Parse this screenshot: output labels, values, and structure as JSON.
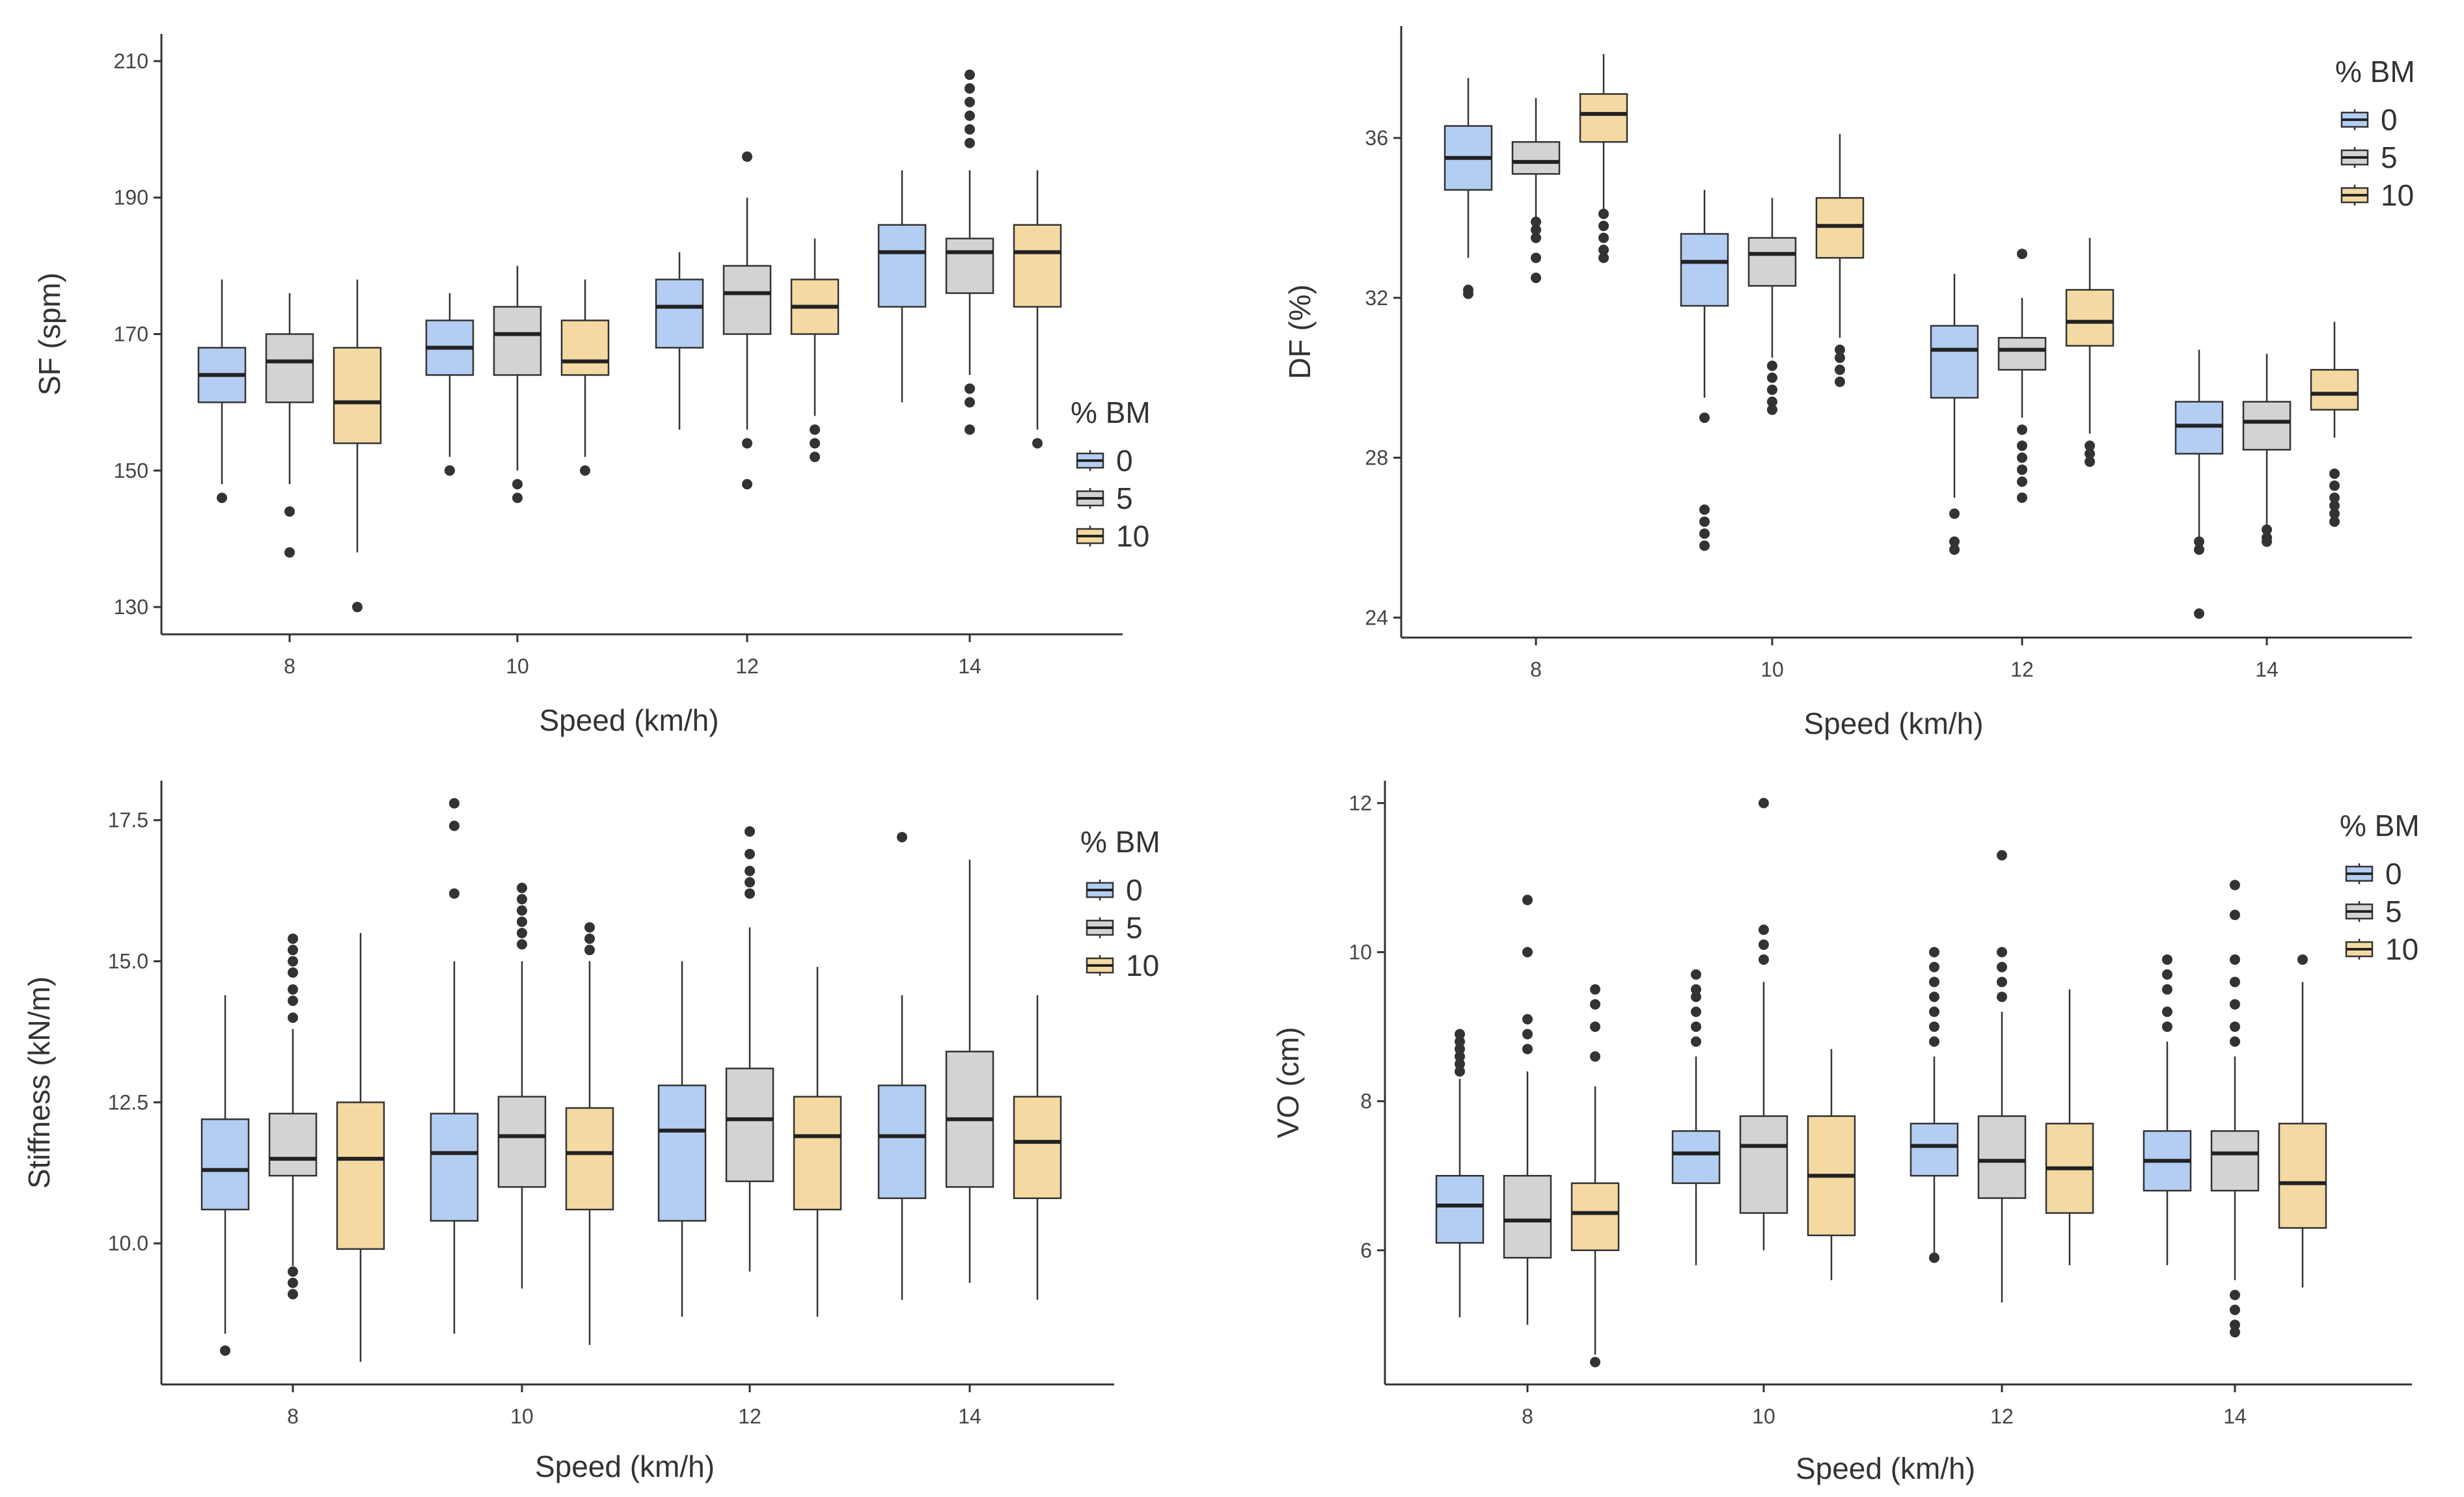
{
  "colors": {
    "0": "#b4cdf2",
    "5": "#d3d3d3",
    "10": "#f4d9a2"
  },
  "chart_data": [
    {
      "type": "boxplot",
      "xlabel": "Speed (km/h)",
      "ylabel": "SF (spm)",
      "ylim": [
        126,
        214
      ],
      "yticks": [
        130,
        150,
        170,
        190,
        210
      ],
      "yticklabels": [
        "130",
        "150",
        "170",
        "190",
        "210"
      ],
      "categories": [
        "8",
        "10",
        "12",
        "14"
      ],
      "legend": {
        "title": "% BM",
        "labels": [
          "0",
          "5",
          "10"
        ]
      },
      "series": [
        {
          "name": "0",
          "boxes": [
            {
              "whislo": 148,
              "q1": 160,
              "med": 164,
              "q3": 168,
              "whishi": 178,
              "fliers": [
                146
              ]
            },
            {
              "whislo": 152,
              "q1": 164,
              "med": 168,
              "q3": 172,
              "whishi": 176,
              "fliers": [
                150,
                150
              ]
            },
            {
              "whislo": 156,
              "q1": 168,
              "med": 174,
              "q3": 178,
              "whishi": 182,
              "fliers": []
            },
            {
              "whislo": 160,
              "q1": 174,
              "med": 182,
              "q3": 186,
              "whishi": 194,
              "fliers": []
            }
          ]
        },
        {
          "name": "5",
          "boxes": [
            {
              "whislo": 148,
              "q1": 160,
              "med": 166,
              "q3": 170,
              "whishi": 176,
              "fliers": [
                144,
                138
              ]
            },
            {
              "whislo": 150,
              "q1": 164,
              "med": 170,
              "q3": 174,
              "whishi": 180,
              "fliers": [
                148,
                146
              ]
            },
            {
              "whislo": 156,
              "q1": 170,
              "med": 176,
              "q3": 180,
              "whishi": 190,
              "fliers": [
                196,
                154,
                148
              ]
            },
            {
              "whislo": 164,
              "q1": 176,
              "med": 182,
              "q3": 184,
              "whishi": 194,
              "fliers": [
                198,
                200,
                202,
                204,
                206,
                208,
                162,
                160,
                156
              ]
            }
          ]
        },
        {
          "name": "10",
          "boxes": [
            {
              "whislo": 138,
              "q1": 154,
              "med": 160,
              "q3": 168,
              "whishi": 178,
              "fliers": [
                130
              ]
            },
            {
              "whislo": 152,
              "q1": 164,
              "med": 166,
              "q3": 172,
              "whishi": 178,
              "fliers": [
                150
              ]
            },
            {
              "whislo": 158,
              "q1": 170,
              "med": 174,
              "q3": 178,
              "whishi": 184,
              "fliers": [
                156,
                154,
                152
              ]
            },
            {
              "whislo": 156,
              "q1": 174,
              "med": 182,
              "q3": 186,
              "whishi": 194,
              "fliers": [
                154
              ]
            }
          ]
        }
      ]
    },
    {
      "type": "boxplot",
      "xlabel": "Speed (km/h)",
      "ylabel": "DF (%)",
      "ylim": [
        23.5,
        38.8
      ],
      "yticks": [
        24,
        28,
        32,
        36
      ],
      "yticklabels": [
        "24",
        "28",
        "32",
        "36"
      ],
      "categories": [
        "8",
        "10",
        "12",
        "14"
      ],
      "legend": {
        "title": "% BM",
        "labels": [
          "0",
          "5",
          "10"
        ]
      },
      "series": [
        {
          "name": "0",
          "boxes": [
            {
              "whislo": 33.0,
              "q1": 34.7,
              "med": 35.5,
              "q3": 36.3,
              "whishi": 37.5,
              "fliers": [
                32.2,
                32.1
              ]
            },
            {
              "whislo": 29.5,
              "q1": 31.8,
              "med": 32.9,
              "q3": 33.6,
              "whishi": 34.7,
              "fliers": [
                29.0,
                26.7,
                26.4,
                26.1,
                25.8
              ]
            },
            {
              "whislo": 27.0,
              "q1": 29.5,
              "med": 30.7,
              "q3": 31.3,
              "whishi": 32.6,
              "fliers": [
                26.6,
                25.9,
                25.7
              ]
            },
            {
              "whislo": 26.0,
              "q1": 28.1,
              "med": 28.8,
              "q3": 29.4,
              "whishi": 30.7,
              "fliers": [
                25.9,
                25.7,
                24.1
              ]
            }
          ]
        },
        {
          "name": "5",
          "boxes": [
            {
              "whislo": 34.0,
              "q1": 35.1,
              "med": 35.4,
              "q3": 35.9,
              "whishi": 37.0,
              "fliers": [
                33.9,
                33.7,
                33.5,
                33.0,
                32.5
              ]
            },
            {
              "whislo": 30.5,
              "q1": 32.3,
              "med": 33.1,
              "q3": 33.5,
              "whishi": 34.5,
              "fliers": [
                30.3,
                30.0,
                29.7,
                29.4,
                29.2
              ]
            },
            {
              "whislo": 29.0,
              "q1": 30.2,
              "med": 30.7,
              "q3": 31.0,
              "whishi": 32.0,
              "fliers": [
                33.1,
                28.7,
                28.3,
                28.0,
                27.7,
                27.4,
                27.0
              ]
            },
            {
              "whislo": 26.3,
              "q1": 28.2,
              "med": 28.9,
              "q3": 29.4,
              "whishi": 30.6,
              "fliers": [
                26.2,
                26.0,
                25.9
              ]
            }
          ]
        },
        {
          "name": "10",
          "boxes": [
            {
              "whislo": 34.2,
              "q1": 35.9,
              "med": 36.6,
              "q3": 37.1,
              "whishi": 38.1,
              "fliers": [
                34.1,
                33.8,
                33.5,
                33.2,
                33.0
              ]
            },
            {
              "whislo": 31.0,
              "q1": 33.0,
              "med": 33.8,
              "q3": 34.5,
              "whishi": 36.1,
              "fliers": [
                30.7,
                30.5,
                30.2,
                29.9
              ]
            },
            {
              "whislo": 28.6,
              "q1": 30.8,
              "med": 31.4,
              "q3": 32.2,
              "whishi": 33.5,
              "fliers": [
                28.3,
                28.1,
                27.9
              ]
            },
            {
              "whislo": 28.5,
              "q1": 29.2,
              "med": 29.6,
              "q3": 30.2,
              "whishi": 31.4,
              "fliers": [
                27.6,
                27.3,
                27.0,
                26.8,
                26.6,
                26.4
              ]
            }
          ]
        }
      ]
    },
    {
      "type": "boxplot",
      "xlabel": "Speed (km/h)",
      "ylabel": "Stiffness (kN/m)",
      "ylim": [
        7.5,
        18.2
      ],
      "yticks": [
        10.0,
        12.5,
        15.0,
        17.5
      ],
      "yticklabels": [
        "10.0",
        "12.5",
        "15.0",
        "17.5"
      ],
      "categories": [
        "8",
        "10",
        "12",
        "14"
      ],
      "legend": {
        "title": "% BM",
        "labels": [
          "0",
          "5",
          "10"
        ]
      },
      "series": [
        {
          "name": "0",
          "boxes": [
            {
              "whislo": 8.4,
              "q1": 10.6,
              "med": 11.3,
              "q3": 12.2,
              "whishi": 14.4,
              "fliers": [
                8.1
              ]
            },
            {
              "whislo": 8.4,
              "q1": 10.4,
              "med": 11.6,
              "q3": 12.3,
              "whishi": 15.0,
              "fliers": [
                16.2,
                17.4,
                17.8
              ]
            },
            {
              "whislo": 8.7,
              "q1": 10.4,
              "med": 12.0,
              "q3": 12.8,
              "whishi": 15.0,
              "fliers": []
            },
            {
              "whislo": 9.0,
              "q1": 10.8,
              "med": 11.9,
              "q3": 12.8,
              "whishi": 14.4,
              "fliers": [
                17.2
              ]
            }
          ]
        },
        {
          "name": "5",
          "boxes": [
            {
              "whislo": 9.6,
              "q1": 11.2,
              "med": 11.5,
              "q3": 12.3,
              "whishi": 13.8,
              "fliers": [
                14.0,
                14.3,
                14.5,
                14.8,
                15.0,
                15.2,
                15.4,
                9.5,
                9.3,
                9.1
              ]
            },
            {
              "whislo": 9.2,
              "q1": 11.0,
              "med": 11.9,
              "q3": 12.6,
              "whishi": 15.0,
              "fliers": [
                15.3,
                15.5,
                15.7,
                15.9,
                16.1,
                16.3
              ]
            },
            {
              "whislo": 9.5,
              "q1": 11.1,
              "med": 12.2,
              "q3": 13.1,
              "whishi": 15.6,
              "fliers": [
                16.2,
                16.4,
                16.6,
                16.9,
                17.3
              ]
            },
            {
              "whislo": 9.3,
              "q1": 11.0,
              "med": 12.2,
              "q3": 13.4,
              "whishi": 16.8,
              "fliers": []
            }
          ]
        },
        {
          "name": "10",
          "boxes": [
            {
              "whislo": 7.9,
              "q1": 9.9,
              "med": 11.5,
              "q3": 12.5,
              "whishi": 15.5,
              "fliers": []
            },
            {
              "whislo": 8.2,
              "q1": 10.6,
              "med": 11.6,
              "q3": 12.4,
              "whishi": 15.0,
              "fliers": [
                15.2,
                15.4,
                15.6
              ]
            },
            {
              "whislo": 8.7,
              "q1": 10.6,
              "med": 11.9,
              "q3": 12.6,
              "whishi": 14.9,
              "fliers": []
            },
            {
              "whislo": 9.0,
              "q1": 10.8,
              "med": 11.8,
              "q3": 12.6,
              "whishi": 14.4,
              "fliers": []
            }
          ]
        }
      ]
    },
    {
      "type": "boxplot",
      "xlabel": "Speed (km/h)",
      "ylabel": "VO (cm)",
      "ylim": [
        4.2,
        12.3
      ],
      "yticks": [
        6,
        8,
        10,
        12
      ],
      "yticklabels": [
        "6",
        "8",
        "10",
        "12"
      ],
      "categories": [
        "8",
        "10",
        "12",
        "14"
      ],
      "legend": {
        "title": "% BM",
        "labels": [
          "0",
          "5",
          "10"
        ]
      },
      "series": [
        {
          "name": "0",
          "boxes": [
            {
              "whislo": 5.1,
              "q1": 6.1,
              "med": 6.6,
              "q3": 7.0,
              "whishi": 8.3,
              "fliers": [
                8.4,
                8.5,
                8.6,
                8.7,
                8.8,
                8.9
              ]
            },
            {
              "whislo": 5.8,
              "q1": 6.9,
              "med": 7.3,
              "q3": 7.6,
              "whishi": 8.6,
              "fliers": [
                8.8,
                9.0,
                9.2,
                9.4,
                9.5,
                9.7
              ]
            },
            {
              "whislo": 5.9,
              "q1": 7.0,
              "med": 7.4,
              "q3": 7.7,
              "whishi": 8.6,
              "fliers": [
                8.8,
                9.0,
                9.2,
                9.4,
                9.6,
                9.8,
                10.0,
                5.9
              ]
            },
            {
              "whislo": 5.8,
              "q1": 6.8,
              "med": 7.2,
              "q3": 7.6,
              "whishi": 8.8,
              "fliers": [
                9.0,
                9.2,
                9.5,
                9.7,
                9.9
              ]
            }
          ]
        },
        {
          "name": "5",
          "boxes": [
            {
              "whislo": 5.0,
              "q1": 5.9,
              "med": 6.4,
              "q3": 7.0,
              "whishi": 8.4,
              "fliers": [
                8.7,
                8.9,
                9.1,
                10.0,
                10.7
              ]
            },
            {
              "whislo": 6.0,
              "q1": 6.5,
              "med": 7.4,
              "q3": 7.8,
              "whishi": 9.6,
              "fliers": [
                9.9,
                10.1,
                10.3,
                12.0
              ]
            },
            {
              "whislo": 5.3,
              "q1": 6.7,
              "med": 7.2,
              "q3": 7.8,
              "whishi": 9.2,
              "fliers": [
                9.4,
                9.6,
                9.8,
                10.0,
                11.3
              ]
            },
            {
              "whislo": 5.6,
              "q1": 6.8,
              "med": 7.3,
              "q3": 7.6,
              "whishi": 8.6,
              "fliers": [
                8.8,
                9.0,
                9.3,
                9.6,
                9.9,
                10.5,
                10.9,
                5.4,
                5.2,
                5.0,
                4.9
              ]
            }
          ]
        },
        {
          "name": "10",
          "boxes": [
            {
              "whislo": 4.6,
              "q1": 6.0,
              "med": 6.5,
              "q3": 6.9,
              "whishi": 8.2,
              "fliers": [
                8.6,
                9.0,
                9.3,
                9.5,
                4.5
              ]
            },
            {
              "whislo": 5.6,
              "q1": 6.2,
              "med": 7.0,
              "q3": 7.8,
              "whishi": 8.7,
              "fliers": []
            },
            {
              "whislo": 5.8,
              "q1": 6.5,
              "med": 7.1,
              "q3": 7.7,
              "whishi": 9.5,
              "fliers": []
            },
            {
              "whislo": 5.5,
              "q1": 6.3,
              "med": 6.9,
              "q3": 7.7,
              "whishi": 9.6,
              "fliers": [
                9.9
              ]
            }
          ]
        }
      ]
    }
  ]
}
